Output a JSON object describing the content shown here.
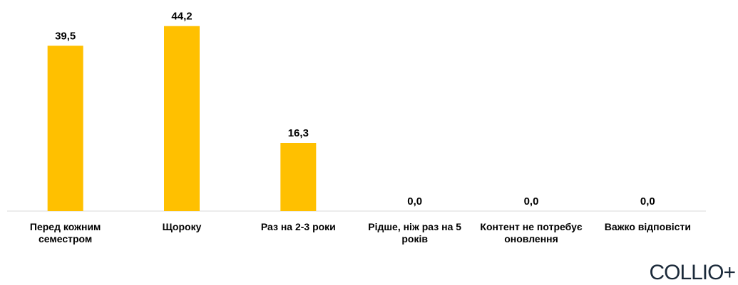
{
  "chart_data": {
    "type": "bar",
    "categories": [
      "Перед кожним семестром",
      "Щороку",
      "Раз на 2-3 роки",
      "Рідше, ніж раз на 5 років",
      "Контент не потребує оновлення",
      "Важко відповісти"
    ],
    "values": [
      39.5,
      44.2,
      16.3,
      0.0,
      0.0,
      0.0
    ],
    "value_labels": [
      "39,5",
      "44,2",
      "16,3",
      "0,0",
      "0,0",
      "0,0"
    ],
    "color": "#ffc000",
    "ylim": [
      0,
      45
    ]
  },
  "logo": "COLLIO+"
}
